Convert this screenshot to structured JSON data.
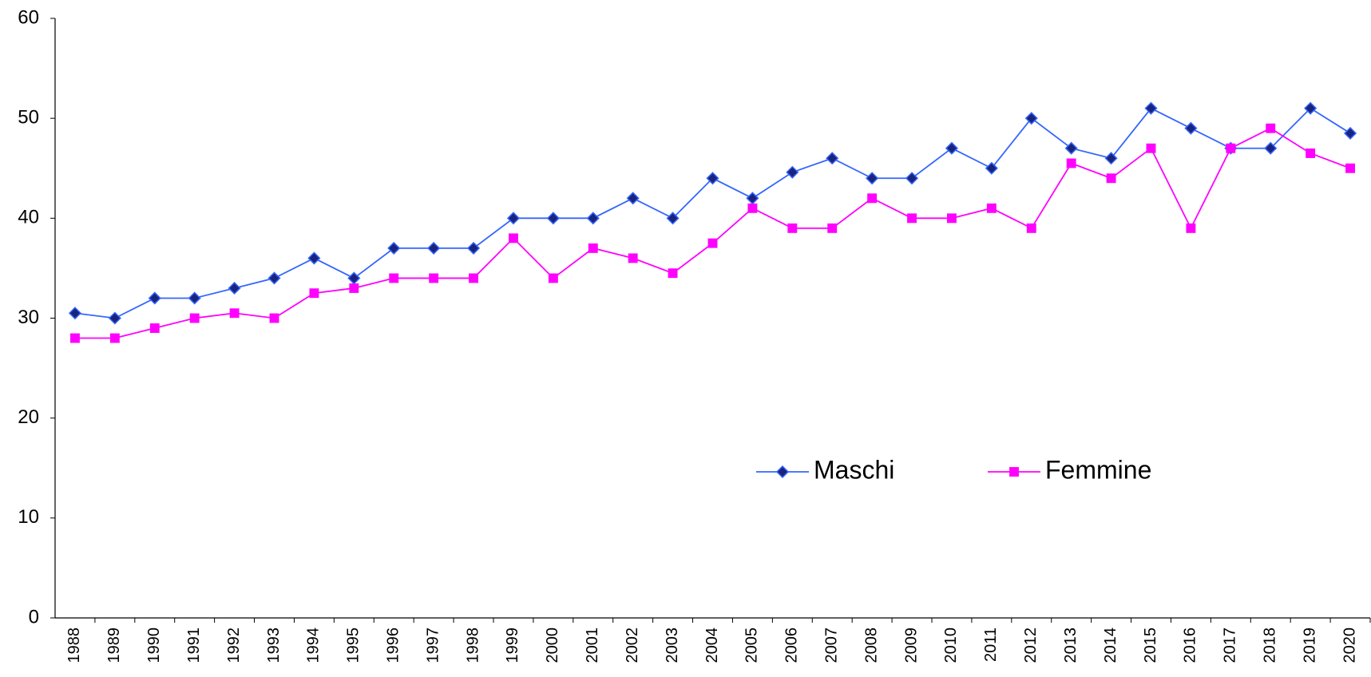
{
  "chart_data": {
    "type": "line",
    "categories": [
      "1988",
      "1989",
      "1990",
      "1991",
      "1992",
      "1993",
      "1994",
      "1995",
      "1996",
      "1997",
      "1998",
      "1999",
      "2000",
      "2001",
      "2002",
      "2003",
      "2004",
      "2005",
      "2006",
      "2007",
      "2008",
      "2009",
      "2010",
      "2011",
      "2012",
      "2013",
      "2014",
      "2015",
      "2016",
      "2017",
      "2018",
      "2019",
      "2020"
    ],
    "series": [
      {
        "name": "Maschi",
        "color": "#3366ff",
        "marker": "diamond",
        "marker_color": "#1a237e",
        "values": [
          30.5,
          30,
          32,
          32,
          33,
          34,
          36,
          34,
          37,
          37,
          37,
          40,
          40,
          40,
          42,
          40,
          44,
          42,
          44.6,
          46,
          44,
          44,
          47,
          45,
          50,
          47,
          46,
          51,
          49,
          47,
          47,
          51,
          48.5
        ]
      },
      {
        "name": "Femmine",
        "color": "#ff00ff",
        "marker": "square",
        "marker_color": "#ff00ff",
        "values": [
          28,
          28,
          29,
          30,
          30.5,
          30,
          32.5,
          33,
          34,
          34,
          34,
          38,
          34,
          37,
          36,
          34.5,
          37.5,
          41,
          39,
          39,
          42,
          40,
          40,
          41,
          39,
          45.5,
          44,
          47,
          39,
          47,
          49,
          46.5,
          45
        ]
      }
    ],
    "ylim": [
      0,
      60
    ],
    "yticks": [
      0,
      10,
      20,
      30,
      40,
      50,
      60
    ],
    "grid": false
  }
}
